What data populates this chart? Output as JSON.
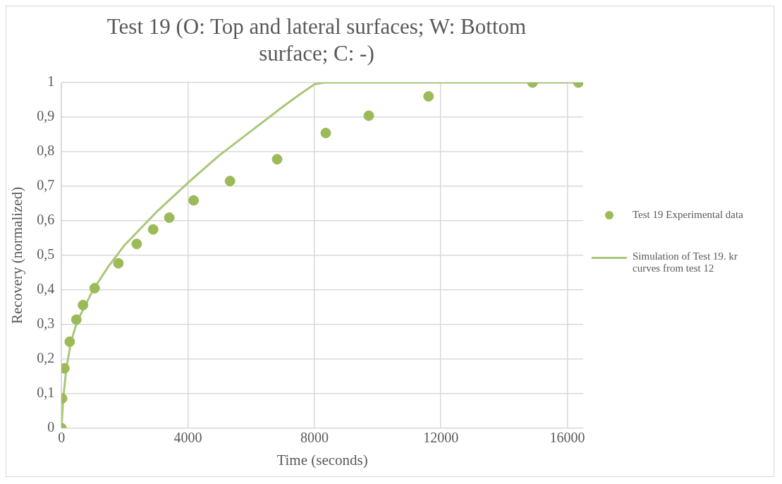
{
  "chart_data": {
    "type": "scatter",
    "title": "Test 19 (O: Top and lateral surfaces; W: Bottom surface; C: -)",
    "xlabel": "Time (seconds)",
    "ylabel": "Recovery (normalized)",
    "xlim": [
      0,
      16500
    ],
    "xticks": [
      0,
      4000,
      8000,
      12000,
      16000
    ],
    "ylim": [
      0,
      1
    ],
    "yticks": [
      {
        "value": 0,
        "label": "0"
      },
      {
        "value": 0.1,
        "label": "0,1"
      },
      {
        "value": 0.2,
        "label": "0,2"
      },
      {
        "value": 0.3,
        "label": "0,3"
      },
      {
        "value": 0.4,
        "label": "0,4"
      },
      {
        "value": 0.5,
        "label": "0,5"
      },
      {
        "value": 0.6,
        "label": "0,6"
      },
      {
        "value": 0.7,
        "label": "0,7"
      },
      {
        "value": 0.8,
        "label": "0,8"
      },
      {
        "value": 0.9,
        "label": "0,9"
      },
      {
        "value": 1,
        "label": "1"
      }
    ],
    "grid": true,
    "legend": "right",
    "series": [
      {
        "name": "Test 19 Experimental data",
        "type": "scatter",
        "color": "#9bbb59",
        "marker": "circle",
        "x": [
          0,
          20,
          90,
          260,
          470,
          680,
          1050,
          1800,
          2380,
          2900,
          3410,
          4180,
          5330,
          6820,
          8360,
          9720,
          11610,
          14900,
          16350
        ],
        "values": [
          0,
          0.086,
          0.173,
          0.25,
          0.314,
          0.356,
          0.405,
          0.477,
          0.533,
          0.575,
          0.609,
          0.659,
          0.715,
          0.778,
          0.854,
          0.904,
          0.96,
          1,
          1
        ]
      },
      {
        "name": "Simulation of  Test 19. kr curves from test 12",
        "type": "line",
        "color": "#a9c77a",
        "marker": "none",
        "x": [
          0,
          50,
          150,
          300,
          500,
          1000,
          1500,
          2000,
          3000,
          4000,
          5000,
          6000,
          7000,
          7600,
          8000,
          8300,
          16500
        ],
        "values": [
          0,
          0.08,
          0.17,
          0.25,
          0.31,
          0.4,
          0.47,
          0.53,
          0.625,
          0.71,
          0.79,
          0.86,
          0.93,
          0.97,
          0.995,
          1,
          1
        ]
      }
    ]
  }
}
